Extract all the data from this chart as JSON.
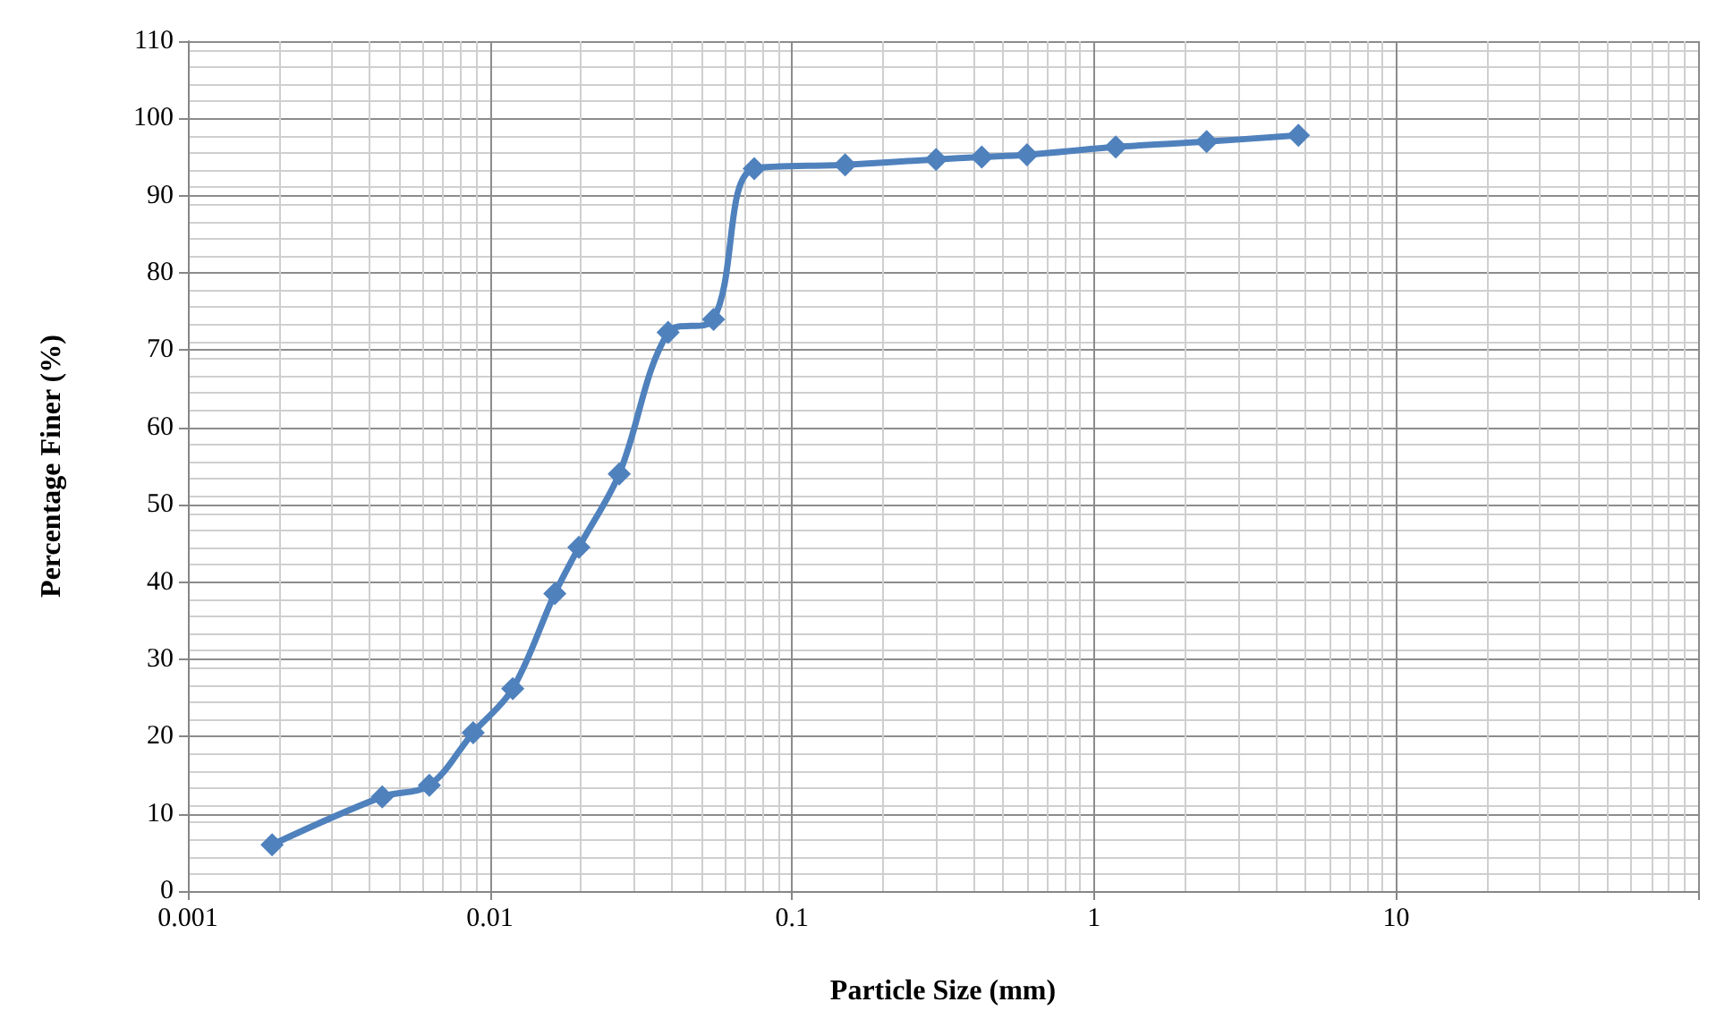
{
  "chart_data": {
    "type": "line",
    "xlabel": "Particle Size (mm)",
    "ylabel": "Percentage Finer (%)",
    "x": [
      0.0019,
      0.0044,
      0.0063,
      0.0088,
      0.0119,
      0.0164,
      0.0197,
      0.0268,
      0.0389,
      0.055,
      0.075,
      0.15,
      0.3,
      0.425,
      0.6,
      1.18,
      2.36,
      4.75
    ],
    "series": [
      {
        "color": "#4f81bd",
        "values": [
          6,
          12.2,
          13.7,
          20.5,
          26.2,
          38.5,
          44.5,
          54,
          72.3,
          74,
          93.5,
          94,
          94.7,
          95,
          95.3,
          96.3,
          97,
          97.8
        ]
      }
    ],
    "log": "x",
    "xlim": [
      0.001,
      100
    ],
    "xticks": [
      0.001,
      0.01,
      0.1,
      1,
      10,
      {
        "value": 100,
        "label": null
      }
    ],
    "ylim": [
      0,
      110
    ],
    "yticks": [
      0,
      10,
      20,
      30,
      40,
      50,
      60,
      70,
      80,
      90,
      100,
      110
    ],
    "grid": true,
    "marker": "diamond",
    "line_style": "solid"
  }
}
